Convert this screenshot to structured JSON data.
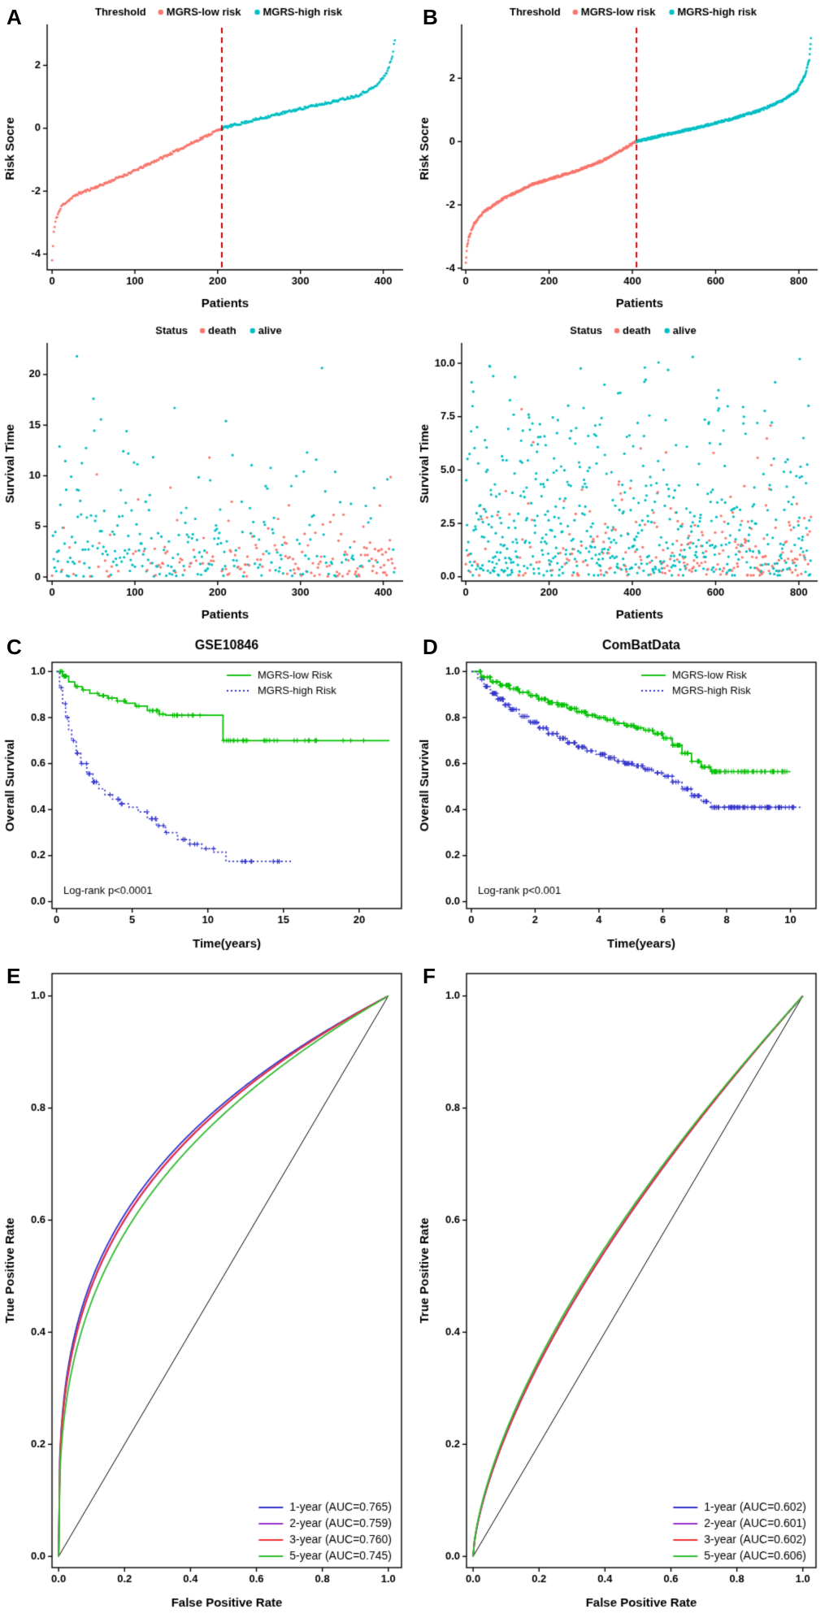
{
  "panel_labels": {
    "A": "A",
    "B": "B",
    "C": "C",
    "D": "D",
    "E": "E",
    "F": "F"
  },
  "colors": {
    "low_risk": "#F8766D",
    "high_risk": "#00BFC4",
    "km_low": "#00C000",
    "km_high": "#3333CC",
    "threshold_line": "#CC0000"
  },
  "chart_data": [
    {
      "panel": "A",
      "type": "scatter",
      "kind": "risk_rank",
      "legend_title": "Threshold",
      "legend": [
        {
          "label": "MGRS-low risk",
          "color": "#F8766D"
        },
        {
          "label": "MGRS-high risk",
          "color": "#00BFC4"
        }
      ],
      "xlabel": "Patients",
      "ylabel": "Risk Socre",
      "xlim": [
        -6,
        424
      ],
      "ylim": [
        -4.5,
        3.2
      ],
      "xticks": [
        0,
        100,
        200,
        300,
        400
      ],
      "yticks": [
        -4,
        -2,
        0,
        2
      ],
      "xdec": 0,
      "ydec": 0,
      "n_patients": 415,
      "threshold_index": 205,
      "threshold_color": "#CC0000",
      "point_colors": {
        "low": "#F8766D",
        "high": "#00BFC4"
      },
      "jitter": 0.04,
      "seed": 11,
      "curve_anchors": [
        [
          0,
          -4.2
        ],
        [
          2,
          -3.3
        ],
        [
          5,
          -2.85
        ],
        [
          12,
          -2.45
        ],
        [
          30,
          -2.1
        ],
        [
          60,
          -1.8
        ],
        [
          100,
          -1.35
        ],
        [
          150,
          -0.72
        ],
        [
          205,
          0.0
        ],
        [
          250,
          0.3
        ],
        [
          300,
          0.62
        ],
        [
          340,
          0.85
        ],
        [
          370,
          1.05
        ],
        [
          392,
          1.35
        ],
        [
          405,
          1.8
        ],
        [
          411,
          2.3
        ],
        [
          415,
          3.0
        ]
      ]
    },
    {
      "panel": "B",
      "type": "scatter",
      "kind": "risk_rank",
      "legend_title": "Threshold",
      "legend": [
        {
          "label": "MGRS-low risk",
          "color": "#F8766D"
        },
        {
          "label": "MGRS-high risk",
          "color": "#00BFC4"
        }
      ],
      "xlabel": "Patients",
      "ylabel": "Risk Socre",
      "xlim": [
        -10,
        845
      ],
      "ylim": [
        -4.05,
        3.6
      ],
      "xticks": [
        0,
        200,
        400,
        600,
        800
      ],
      "yticks": [
        -4,
        -2,
        0,
        2
      ],
      "xdec": 0,
      "ydec": 0,
      "n_patients": 830,
      "threshold_index": 410,
      "threshold_color": "#CC0000",
      "point_colors": {
        "low": "#F8766D",
        "high": "#00BFC4"
      },
      "jitter": 0.035,
      "seed": 23,
      "curve_anchors": [
        [
          0,
          -3.8
        ],
        [
          3,
          -3.3
        ],
        [
          8,
          -3.0
        ],
        [
          20,
          -2.6
        ],
        [
          45,
          -2.2
        ],
        [
          90,
          -1.8
        ],
        [
          160,
          -1.35
        ],
        [
          260,
          -0.95
        ],
        [
          330,
          -0.6
        ],
        [
          410,
          0.0
        ],
        [
          480,
          0.22
        ],
        [
          560,
          0.45
        ],
        [
          640,
          0.72
        ],
        [
          710,
          1.0
        ],
        [
          760,
          1.3
        ],
        [
          795,
          1.6
        ],
        [
          815,
          2.1
        ],
        [
          825,
          2.6
        ],
        [
          830,
          3.4
        ]
      ]
    },
    {
      "panel": "A2",
      "type": "scatter",
      "kind": "surv_scatter",
      "legend_title": "Status",
      "legend": [
        {
          "label": "death",
          "color": "#F8766D"
        },
        {
          "label": "alive",
          "color": "#00BFC4"
        }
      ],
      "xlabel": "Patients",
      "ylabel": "Survival Time",
      "xlim": [
        -6,
        424
      ],
      "ylim": [
        -0.4,
        22.8
      ],
      "xticks": [
        0,
        100,
        200,
        300,
        400
      ],
      "yticks": [
        0,
        5,
        10,
        15,
        20
      ],
      "xdec": 0,
      "ydec": 0,
      "n_patients": 415,
      "death_frac": [
        0.15,
        0.62
      ],
      "death_mean": 2.0,
      "alive_mean": 3.4,
      "seed": 7,
      "point_colors": {
        "death": "#F8766D",
        "alive": "#00BFC4"
      },
      "extra_points": [
        [
          30,
          21.8,
          "alive"
        ],
        [
          148,
          16.7,
          "alive"
        ],
        [
          210,
          15.4,
          "alive"
        ],
        [
          92,
          12.2,
          "alive"
        ],
        [
          190,
          11.8,
          "death"
        ],
        [
          308,
          12.3,
          "alive"
        ]
      ]
    },
    {
      "panel": "B2",
      "type": "scatter",
      "kind": "surv_scatter",
      "legend_title": "Status",
      "legend": [
        {
          "label": "death",
          "color": "#F8766D"
        },
        {
          "label": "alive",
          "color": "#00BFC4"
        }
      ],
      "xlabel": "Patients",
      "ylabel": "Survival Time",
      "xlim": [
        -10,
        845
      ],
      "ylim": [
        -0.2,
        10.8
      ],
      "xticks": [
        0,
        200,
        400,
        600,
        800
      ],
      "yticks": [
        0,
        2.5,
        5,
        7.5,
        10
      ],
      "xdec": 0,
      "ydec": 1,
      "n_patients": 830,
      "death_frac": [
        0.12,
        0.45
      ],
      "death_mean": 1.5,
      "alive_mean": 3.2,
      "seed": 19,
      "point_colors": {
        "death": "#F8766D",
        "alive": "#00BFC4"
      },
      "extra_points": [
        [
          545,
          10.3,
          "alive"
        ],
        [
          802,
          10.2,
          "alive"
        ],
        [
          430,
          9.8,
          "alive"
        ],
        [
          66,
          9.4,
          "alive"
        ],
        [
          333,
          9.0,
          "alive"
        ]
      ]
    },
    {
      "panel": "C",
      "type": "line",
      "kind": "km",
      "title": "GSE10846",
      "xlabel": "Time(years)",
      "ylabel": "Overall Survival",
      "xlim": [
        -0.3,
        22.8
      ],
      "ylim": [
        -0.03,
        1.04
      ],
      "xticks": [
        0,
        5,
        10,
        15,
        20
      ],
      "yticks": [
        0,
        0.2,
        0.4,
        0.6,
        0.8,
        1
      ],
      "xdec": 0,
      "ydec": 1,
      "pvalue": "Log-rank p<0.0001",
      "seed": 3,
      "series": [
        {
          "name": "MGRS-low Risk",
          "color": "#00C000",
          "dash": "solid",
          "censor_marks": 70,
          "censor_max": 21,
          "censor_skew": 1.6,
          "steps": [
            [
              0,
              1.0
            ],
            [
              0.4,
              0.98
            ],
            [
              0.8,
              0.955
            ],
            [
              1.2,
              0.935
            ],
            [
              1.7,
              0.92
            ],
            [
              2.2,
              0.905
            ],
            [
              2.8,
              0.895
            ],
            [
              3.4,
              0.885
            ],
            [
              4.0,
              0.872
            ],
            [
              4.6,
              0.862
            ],
            [
              5.2,
              0.85
            ],
            [
              6.0,
              0.83
            ],
            [
              6.8,
              0.815
            ],
            [
              7.2,
              0.81
            ],
            [
              11.0,
              0.7
            ],
            [
              22.0,
              0.7
            ]
          ]
        },
        {
          "name": "MGRS-high Risk",
          "color": "#3333CC",
          "dash": "dot",
          "censor_marks": 42,
          "censor_max": 15,
          "censor_skew": 1.3,
          "steps": [
            [
              0,
              1.0
            ],
            [
              0.2,
              0.93
            ],
            [
              0.4,
              0.86
            ],
            [
              0.6,
              0.8
            ],
            [
              0.8,
              0.745
            ],
            [
              1.0,
              0.7
            ],
            [
              1.3,
              0.645
            ],
            [
              1.6,
              0.6
            ],
            [
              2.0,
              0.555
            ],
            [
              2.4,
              0.52
            ],
            [
              2.8,
              0.49
            ],
            [
              3.2,
              0.465
            ],
            [
              3.7,
              0.445
            ],
            [
              4.2,
              0.425
            ],
            [
              4.8,
              0.41
            ],
            [
              5.4,
              0.39
            ],
            [
              6.0,
              0.36
            ],
            [
              6.6,
              0.33
            ],
            [
              7.2,
              0.3
            ],
            [
              8.0,
              0.27
            ],
            [
              8.8,
              0.25
            ],
            [
              9.6,
              0.23
            ],
            [
              10.4,
              0.215
            ],
            [
              11.2,
              0.175
            ],
            [
              15.5,
              0.175
            ]
          ]
        }
      ]
    },
    {
      "panel": "D",
      "type": "line",
      "kind": "km",
      "title": "ComBatData",
      "xlabel": "Time(years)",
      "ylabel": "Overall Survival",
      "xlim": [
        -0.15,
        10.8
      ],
      "ylim": [
        -0.03,
        1.04
      ],
      "xticks": [
        0,
        2,
        4,
        6,
        8,
        10
      ],
      "yticks": [
        0,
        0.2,
        0.4,
        0.6,
        0.8,
        1
      ],
      "xdec": 0,
      "ydec": 1,
      "pvalue": "Log-rank p<0.001",
      "seed": 5,
      "series": [
        {
          "name": "MGRS-low Risk",
          "color": "#00C000",
          "dash": "solid",
          "censor_marks": 240,
          "censor_max": 9.9,
          "censor_skew": 1.05,
          "steps": [
            [
              0,
              1.0
            ],
            [
              0.3,
              0.975
            ],
            [
              0.6,
              0.955
            ],
            [
              0.9,
              0.94
            ],
            [
              1.2,
              0.925
            ],
            [
              1.5,
              0.91
            ],
            [
              1.8,
              0.895
            ],
            [
              2.1,
              0.88
            ],
            [
              2.4,
              0.865
            ],
            [
              2.7,
              0.855
            ],
            [
              3.0,
              0.84
            ],
            [
              3.3,
              0.825
            ],
            [
              3.6,
              0.81
            ],
            [
              3.9,
              0.8
            ],
            [
              4.2,
              0.79
            ],
            [
              4.5,
              0.775
            ],
            [
              4.8,
              0.765
            ],
            [
              5.1,
              0.755
            ],
            [
              5.4,
              0.745
            ],
            [
              5.7,
              0.73
            ],
            [
              6.0,
              0.71
            ],
            [
              6.3,
              0.68
            ],
            [
              6.6,
              0.645
            ],
            [
              6.9,
              0.61
            ],
            [
              7.2,
              0.585
            ],
            [
              7.5,
              0.565
            ],
            [
              10.0,
              0.565
            ]
          ]
        },
        {
          "name": "MGRS-high Risk",
          "color": "#3333CC",
          "dash": "dot",
          "censor_marks": 210,
          "censor_max": 10.1,
          "censor_skew": 1.05,
          "steps": [
            [
              0,
              1.0
            ],
            [
              0.2,
              0.965
            ],
            [
              0.4,
              0.935
            ],
            [
              0.6,
              0.905
            ],
            [
              0.8,
              0.88
            ],
            [
              1.0,
              0.855
            ],
            [
              1.2,
              0.835
            ],
            [
              1.5,
              0.805
            ],
            [
              1.8,
              0.78
            ],
            [
              2.1,
              0.755
            ],
            [
              2.4,
              0.73
            ],
            [
              2.7,
              0.71
            ],
            [
              3.0,
              0.69
            ],
            [
              3.3,
              0.672
            ],
            [
              3.6,
              0.655
            ],
            [
              3.9,
              0.64
            ],
            [
              4.2,
              0.625
            ],
            [
              4.5,
              0.61
            ],
            [
              4.8,
              0.6
            ],
            [
              5.1,
              0.59
            ],
            [
              5.4,
              0.575
            ],
            [
              5.7,
              0.56
            ],
            [
              6.0,
              0.545
            ],
            [
              6.3,
              0.52
            ],
            [
              6.6,
              0.49
            ],
            [
              6.9,
              0.46
            ],
            [
              7.2,
              0.435
            ],
            [
              7.5,
              0.41
            ],
            [
              10.35,
              0.41
            ]
          ]
        }
      ]
    },
    {
      "panel": "E",
      "type": "line",
      "kind": "roc",
      "xlabel": "False Positive Rate",
      "ylabel": "True Positive Rate",
      "xlim": [
        -0.02,
        1.04
      ],
      "ylim": [
        -0.02,
        1.04
      ],
      "xticks": [
        0,
        0.2,
        0.4,
        0.6,
        0.8,
        1
      ],
      "yticks": [
        0,
        0.2,
        0.4,
        0.6,
        0.8,
        1
      ],
      "xdec": 1,
      "ydec": 1,
      "diagonal_color": "#000000",
      "series": [
        {
          "name": "1-year (AUC=0.765)",
          "auc": 0.765,
          "color": "#3333CC"
        },
        {
          "name": "2-year (AUC=0.759)",
          "auc": 0.759,
          "color": "#9933CC"
        },
        {
          "name": "3-year (AUC=0.760)",
          "auc": 0.76,
          "color": "#EE3333"
        },
        {
          "name": "5-year (AUC=0.745)",
          "auc": 0.745,
          "color": "#33BB33"
        }
      ]
    },
    {
      "panel": "F",
      "type": "line",
      "kind": "roc",
      "xlabel": "False Positive Rate",
      "ylabel": "True Positive Rate",
      "xlim": [
        -0.02,
        1.04
      ],
      "ylim": [
        -0.02,
        1.04
      ],
      "xticks": [
        0,
        0.2,
        0.4,
        0.6,
        0.8,
        1
      ],
      "yticks": [
        0,
        0.2,
        0.4,
        0.6,
        0.8,
        1
      ],
      "xdec": 1,
      "ydec": 1,
      "diagonal_color": "#000000",
      "series": [
        {
          "name": "1-year (AUC=0.602)",
          "auc": 0.602,
          "color": "#3333CC"
        },
        {
          "name": "2-year (AUC=0.601)",
          "auc": 0.601,
          "color": "#9933CC"
        },
        {
          "name": "3-year (AUC=0.602)",
          "auc": 0.602,
          "color": "#EE3333"
        },
        {
          "name": "5-year (AUC=0.606)",
          "auc": 0.606,
          "color": "#33BB33"
        }
      ]
    }
  ]
}
